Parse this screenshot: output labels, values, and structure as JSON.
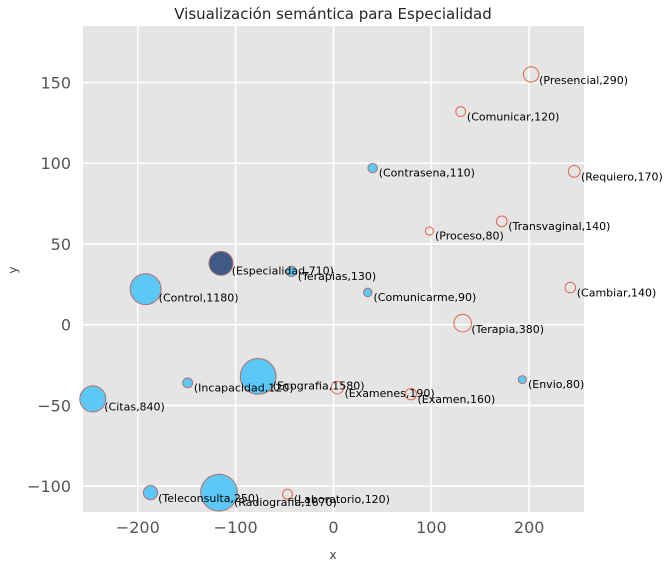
{
  "chart_data": {
    "type": "scatter",
    "title": "Visualización semántica para Especialidad",
    "xlabel": "x",
    "ylabel": "y",
    "xlim": [
      -256,
      256
    ],
    "ylim": [
      -116,
      185
    ],
    "xticks": [
      -200,
      -100,
      0,
      100,
      200
    ],
    "xtick_labels": [
      "−200",
      "−100",
      "0",
      "100",
      "200"
    ],
    "yticks": [
      -100,
      -50,
      0,
      50,
      100,
      150
    ],
    "ytick_labels": [
      "−100",
      "−50",
      "0",
      "50",
      "100",
      "150"
    ],
    "grid": true,
    "colors": {
      "background": "#e5e5e5",
      "grid": "#ffffff",
      "filled": "#5bc8f5",
      "highlight": "#3f5a85",
      "hollow_edge": "#e06650",
      "edge": "#b07070"
    },
    "points": [
      {
        "word": "Presencial",
        "count": 290,
        "x": 202,
        "y": 155,
        "style": "hollow",
        "label": "(Presencial,290)"
      },
      {
        "word": "Comunicar",
        "count": 120,
        "x": 130,
        "y": 132,
        "style": "hollow",
        "label": "(Comunicar,120)"
      },
      {
        "word": "Contrasena",
        "count": 110,
        "x": 40,
        "y": 97,
        "style": "filled",
        "label": "(Contrasena,110)"
      },
      {
        "word": "Requiero",
        "count": 170,
        "x": 246,
        "y": 95,
        "style": "hollow",
        "label": "(Requiero,170)"
      },
      {
        "word": "Transvaginal",
        "count": 140,
        "x": 172,
        "y": 64,
        "style": "hollow",
        "label": "(Transvaginal,140)"
      },
      {
        "word": "Proceso",
        "count": 80,
        "x": 98,
        "y": 58,
        "style": "hollow",
        "label": "(Proceso,80)"
      },
      {
        "word": "Especialidad",
        "count": 710,
        "x": -115,
        "y": 38,
        "style": "highlight",
        "label": "(Especialidad,710)"
      },
      {
        "word": "Terapias",
        "count": 130,
        "x": -43,
        "y": 33,
        "style": "filled",
        "label": "(Terapias,130)"
      },
      {
        "word": "Control",
        "count": 1180,
        "x": -192,
        "y": 22,
        "style": "filled",
        "label": "(Control,1180)"
      },
      {
        "word": "Cambiar",
        "count": 140,
        "x": 242,
        "y": 23,
        "style": "hollow",
        "label": "(Cambiar,140)"
      },
      {
        "word": "Comunicarme",
        "count": 90,
        "x": 35,
        "y": 20,
        "style": "filled",
        "label": "(Comunicarme,90)"
      },
      {
        "word": "Terapia",
        "count": 380,
        "x": 132,
        "y": 1,
        "style": "hollow",
        "label": "(Terapia,380)"
      },
      {
        "word": "Ecografia",
        "count": 1580,
        "x": -77,
        "y": -32,
        "style": "filled",
        "label": "(Ecografia,1580)"
      },
      {
        "word": "Incapacidad",
        "count": 120,
        "x": -149,
        "y": -36,
        "style": "filled",
        "label": "(Incapacidad,120)"
      },
      {
        "word": "Envio",
        "count": 80,
        "x": 193,
        "y": -34,
        "style": "filled",
        "label": "(Envio,80)"
      },
      {
        "word": "Examenes",
        "count": 190,
        "x": 4,
        "y": -39,
        "style": "hollow",
        "label": "(Examenes,190)"
      },
      {
        "word": "Examen",
        "count": 160,
        "x": 79,
        "y": -43,
        "style": "hollow",
        "label": "(Examen,160)"
      },
      {
        "word": "Citas",
        "count": 840,
        "x": -246,
        "y": -46,
        "style": "filled",
        "label": "(Citas,840)"
      },
      {
        "word": "Teleconsulta",
        "count": 250,
        "x": -187,
        "y": -104,
        "style": "filled",
        "label": "(Teleconsulta,250)"
      },
      {
        "word": "Radiografia",
        "count": 1670,
        "x": -117,
        "y": -104,
        "style": "filled",
        "label": "(Radiografia,1670)"
      },
      {
        "word": "Laboratorio",
        "count": 120,
        "x": -47,
        "y": -105,
        "style": "hollow",
        "label": "(Laboratorio,120)"
      }
    ]
  }
}
